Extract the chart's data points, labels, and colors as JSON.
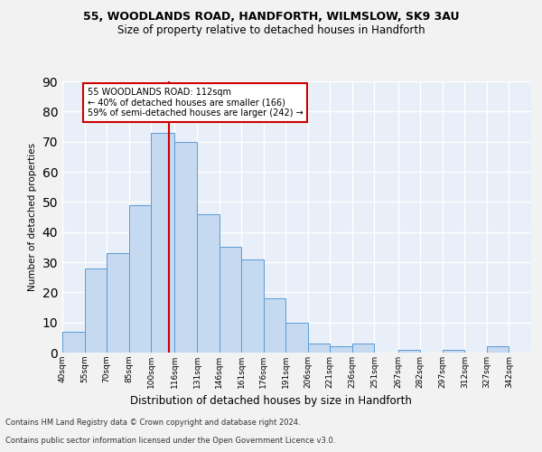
{
  "title1": "55, WOODLANDS ROAD, HANDFORTH, WILMSLOW, SK9 3AU",
  "title2": "Size of property relative to detached houses in Handforth",
  "xlabel": "Distribution of detached houses by size in Handforth",
  "ylabel": "Number of detached properties",
  "bin_labels": [
    "40sqm",
    "55sqm",
    "70sqm",
    "85sqm",
    "100sqm",
    "116sqm",
    "131sqm",
    "146sqm",
    "161sqm",
    "176sqm",
    "191sqm",
    "206sqm",
    "221sqm",
    "236sqm",
    "251sqm",
    "267sqm",
    "282sqm",
    "297sqm",
    "312sqm",
    "327sqm",
    "342sqm"
  ],
  "bar_values": [
    7,
    28,
    33,
    49,
    73,
    70,
    46,
    35,
    31,
    18,
    10,
    3,
    2,
    3,
    0,
    1,
    0,
    1,
    0,
    2,
    0
  ],
  "bar_color": "#c5d9f0",
  "bar_edge_color": "#5b9bd5",
  "vline_x": 112,
  "vline_color": "#cc0000",
  "annotation_line1": "55 WOODLANDS ROAD: 112sqm",
  "annotation_line2": "← 40% of detached houses are smaller (166)",
  "annotation_line3": "59% of semi-detached houses are larger (242) →",
  "annotation_box_color": "#ffffff",
  "annotation_box_edge": "#cc0000",
  "footer1": "Contains HM Land Registry data © Crown copyright and database right 2024.",
  "footer2": "Contains public sector information licensed under the Open Government Licence v3.0.",
  "ylim": [
    0,
    90
  ],
  "yticks": [
    0,
    10,
    20,
    30,
    40,
    50,
    60,
    70,
    80,
    90
  ],
  "background_color": "#e8eff8",
  "grid_color": "#ffffff",
  "bin_edges": [
    40,
    55,
    70,
    85,
    100,
    116,
    131,
    146,
    161,
    176,
    191,
    206,
    221,
    236,
    251,
    267,
    282,
    297,
    312,
    327,
    342,
    357
  ],
  "fig_bg": "#f2f2f2"
}
